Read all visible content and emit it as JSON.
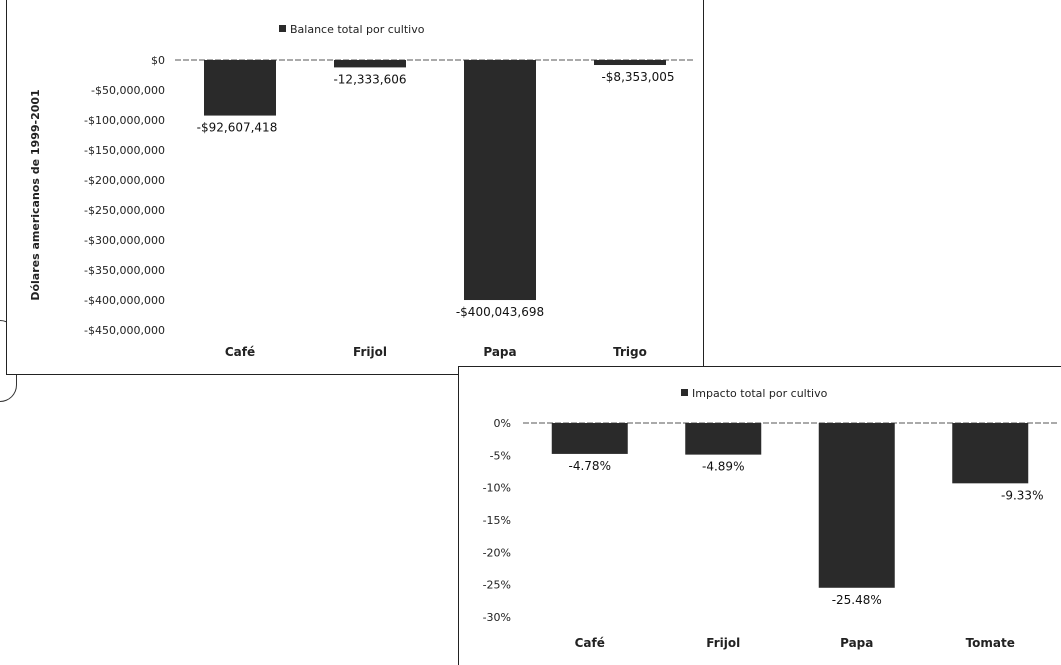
{
  "chart_data": [
    {
      "type": "bar",
      "legend": "Balance total por cultivo",
      "ylabel": "Dólares americanos de 1999-2001",
      "categories": [
        "Café",
        "Frijol",
        "Papa",
        "Trigo"
      ],
      "values": [
        -92607418,
        -12333606,
        -400043698,
        -8353005
      ],
      "data_labels": [
        "-$92,607,418",
        "-12,333,606",
        "-$400,043,698",
        "-$8,353,005"
      ],
      "ylim": [
        -450000000,
        0
      ],
      "yticks": [
        0,
        -50000000,
        -100000000,
        -150000000,
        -200000000,
        -250000000,
        -300000000,
        -350000000,
        -400000000,
        -450000000
      ],
      "ytick_labels": [
        "$0",
        "-$50,000,000",
        "-$100,000,000",
        "-$150,000,000",
        "-$200,000,000",
        "-$250,000,000",
        "-$300,000,000",
        "-$350,000,000",
        "-$400,000,000",
        "-$450,000,000"
      ],
      "legend_position": "top",
      "grid": false,
      "bar_color": "#2a2a2a"
    },
    {
      "type": "bar",
      "legend": "Impacto total por cultivo",
      "ylabel": "",
      "categories": [
        "Café",
        "Frijol",
        "Papa",
        "Tomate"
      ],
      "values": [
        -4.78,
        -4.89,
        -25.48,
        -9.33
      ],
      "data_labels": [
        "-4.78%",
        "-4.89%",
        "-25.48%",
        "-9.33%"
      ],
      "ylim": [
        -30,
        0
      ],
      "yticks": [
        0,
        -5,
        -10,
        -15,
        -20,
        -25,
        -30
      ],
      "ytick_labels": [
        "0%",
        "-5%",
        "-10%",
        "-15%",
        "-20%",
        "-25%",
        "-30%"
      ],
      "legend_position": "top",
      "grid": false,
      "bar_color": "#2a2a2a"
    }
  ]
}
